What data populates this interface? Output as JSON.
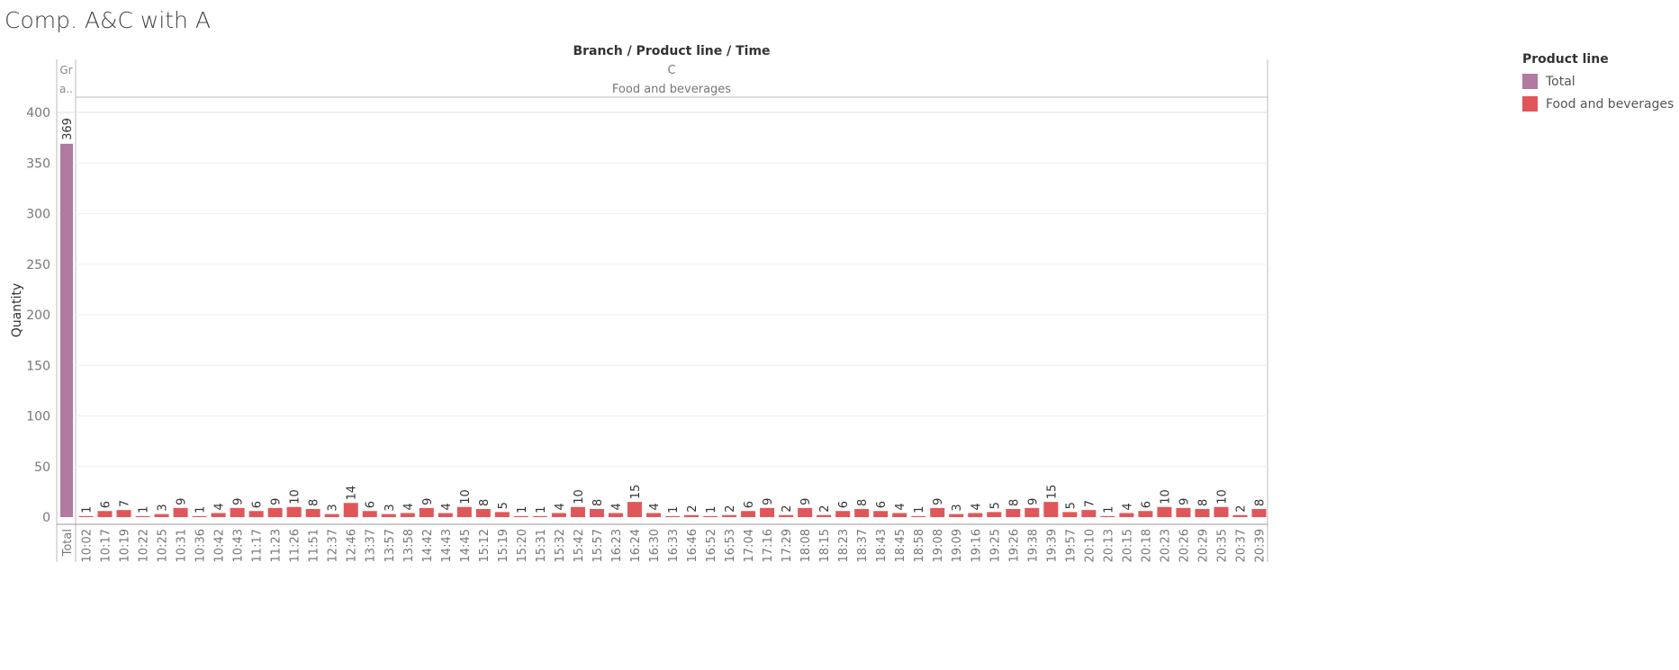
{
  "title": "Comp. A&C with A",
  "chart_data": {
    "type": "bar",
    "header": "Branch / Product line / Time",
    "branch": "C",
    "grand_total_header": "Gr a..",
    "product_line": "Food and beverages",
    "ylabel": "Quantity",
    "ylim": [
      0,
      400
    ],
    "yticks": [
      0,
      50,
      100,
      150,
      200,
      250,
      300,
      350,
      400
    ],
    "total": {
      "category": "Total",
      "value": 369
    },
    "categories": [
      "10:02",
      "10:17",
      "10:19",
      "10:22",
      "10:25",
      "10:31",
      "10:36",
      "10:42",
      "10:43",
      "11:17",
      "11:23",
      "11:26",
      "11:51",
      "12:37",
      "12:46",
      "13:37",
      "13:57",
      "13:58",
      "14:42",
      "14:43",
      "14:45",
      "15:12",
      "15:19",
      "15:20",
      "15:31",
      "15:32",
      "15:42",
      "15:57",
      "16:23",
      "16:24",
      "16:30",
      "16:33",
      "16:46",
      "16:52",
      "16:53",
      "17:04",
      "17:16",
      "17:29",
      "18:08",
      "18:15",
      "18:23",
      "18:37",
      "18:43",
      "18:45",
      "18:58",
      "19:08",
      "19:09",
      "19:16",
      "19:25",
      "19:26",
      "19:38",
      "19:39",
      "19:57",
      "20:10",
      "20:13",
      "20:15",
      "20:18",
      "20:23",
      "20:26",
      "20:29",
      "20:35",
      "20:37",
      "20:39"
    ],
    "values": [
      1,
      6,
      7,
      1,
      3,
      9,
      1,
      4,
      9,
      6,
      9,
      10,
      8,
      3,
      14,
      6,
      3,
      4,
      9,
      4,
      10,
      8,
      5,
      1,
      1,
      4,
      10,
      8,
      4,
      15,
      4,
      1,
      2,
      1,
      2,
      6,
      9,
      2,
      9,
      2,
      6,
      8,
      6,
      4,
      1,
      9,
      3,
      4,
      5,
      8,
      9,
      15,
      5,
      7,
      1,
      4,
      6,
      10,
      9,
      8,
      10,
      2,
      8
    ],
    "colors": {
      "total": "#B07AA1",
      "series": "#E15759"
    }
  },
  "legend": {
    "title": "Product line",
    "items": [
      {
        "label": "Total",
        "color": "#B07AA1"
      },
      {
        "label": "Food and beverages",
        "color": "#E15759"
      }
    ]
  }
}
